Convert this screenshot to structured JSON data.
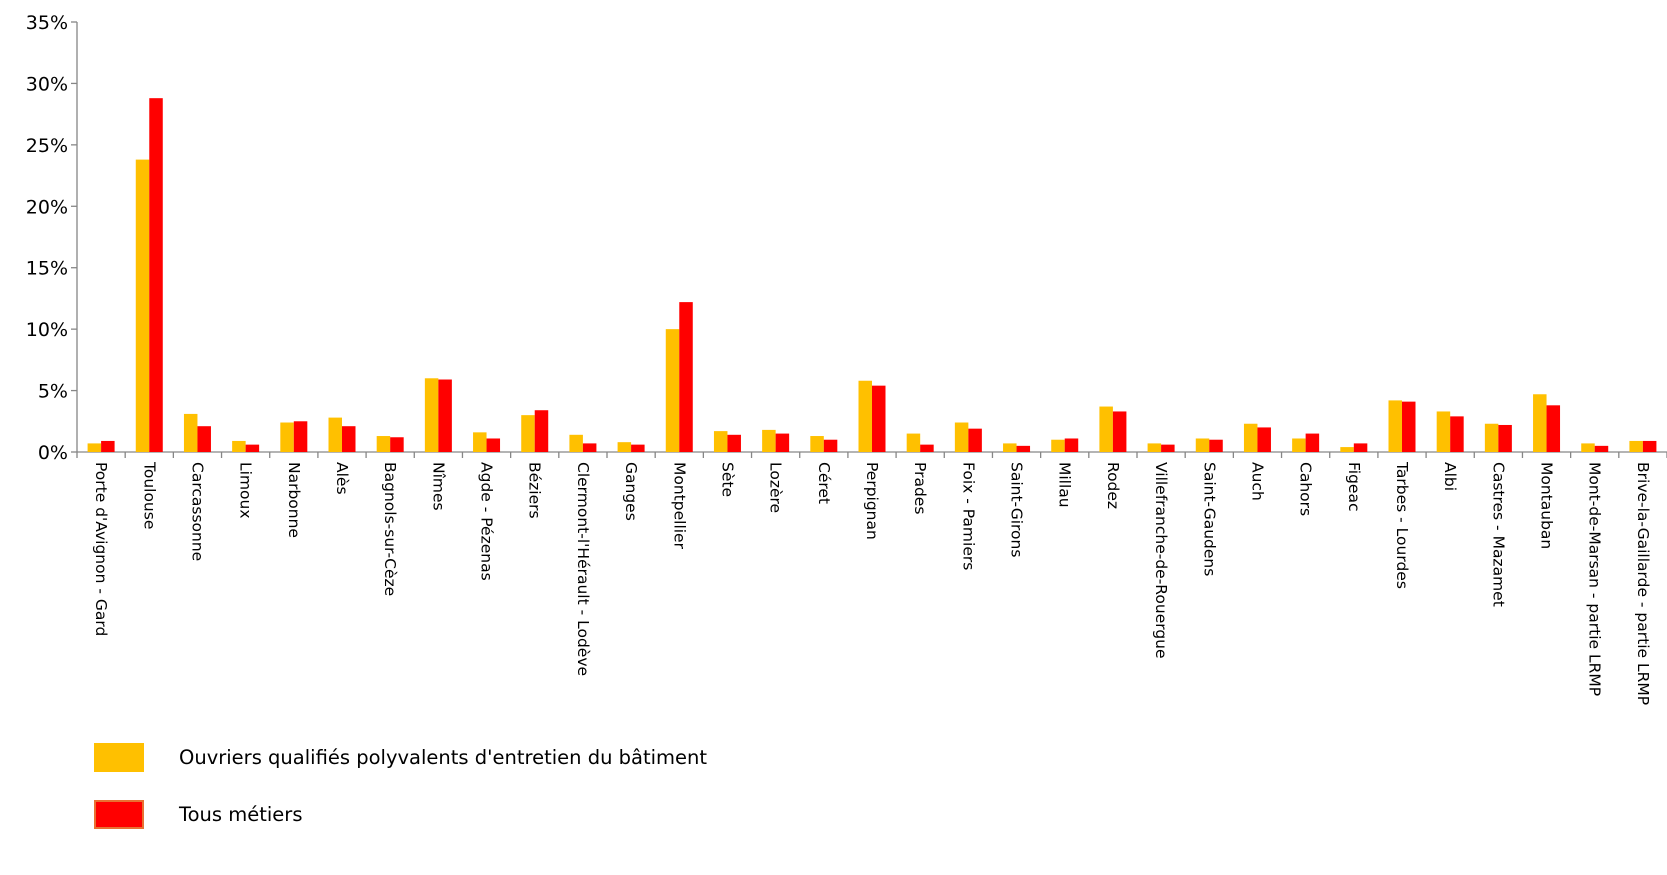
{
  "chart_data": {
    "type": "bar",
    "title": "",
    "xlabel": "",
    "ylabel": "",
    "ylim": [
      0,
      35
    ],
    "yticks": [
      0,
      5,
      10,
      15,
      20,
      25,
      30,
      35
    ],
    "ytick_labels": [
      "0%",
      "5%",
      "10%",
      "15%",
      "20%",
      "25%",
      "30%",
      "35%"
    ],
    "grid": false,
    "legend_position": "bottom-left",
    "categories": [
      "Porte d'Avignon - Gard",
      "Toulouse",
      "Carcassonne",
      "Limoux",
      "Narbonne",
      "Alès",
      "Bagnols-sur-Cèze",
      "Nîmes",
      "Agde - Pézenas",
      "Béziers",
      "Clermont-l'Hérault - Lodève",
      "Ganges",
      "Montpellier",
      "Sète",
      "Lozère",
      "Céret",
      "Perpignan",
      "Prades",
      "Foix - Pamiers",
      "Saint-Girons",
      "Millau",
      "Rodez",
      "Villefranche-de-Rouergue",
      "Saint-Gaudens",
      "Auch",
      "Cahors",
      "Figeac",
      "Tarbes - Lourdes",
      "Albi",
      "Castres - Mazamet",
      "Montauban",
      "Mont-de-Marsan - partie LRMP",
      "Brive-la-Gaillarde - partie LRMP"
    ],
    "series": [
      {
        "name": "Ouvriers qualifiés polyvalents d'entretien du bâtiment",
        "color": "#FFC000",
        "values": [
          0.7,
          23.8,
          3.1,
          0.9,
          2.4,
          2.8,
          1.3,
          6.0,
          1.6,
          3.0,
          1.4,
          0.8,
          10.0,
          1.7,
          1.8,
          1.3,
          5.8,
          1.5,
          2.4,
          0.7,
          1.0,
          3.7,
          0.7,
          1.1,
          2.3,
          1.1,
          0.4,
          4.2,
          3.3,
          2.3,
          4.7,
          0.7,
          0.9
        ]
      },
      {
        "name": "Tous métiers",
        "color": "#FF0000",
        "values": [
          0.9,
          28.8,
          2.1,
          0.6,
          2.5,
          2.1,
          1.2,
          5.9,
          1.1,
          3.4,
          0.7,
          0.6,
          12.2,
          1.4,
          1.5,
          1.0,
          5.4,
          0.6,
          1.9,
          0.5,
          1.1,
          3.3,
          0.6,
          1.0,
          2.0,
          1.5,
          0.7,
          4.1,
          2.9,
          2.2,
          3.8,
          0.5,
          0.9
        ]
      }
    ]
  },
  "legend": {
    "items": [
      {
        "label": "Ouvriers qualifiés polyvalents d'entretien du bâtiment",
        "color": "#FFC000",
        "border": "#FFC000"
      },
      {
        "label": "Tous métiers",
        "color": "#FF0000",
        "border": "#E97132"
      }
    ]
  }
}
